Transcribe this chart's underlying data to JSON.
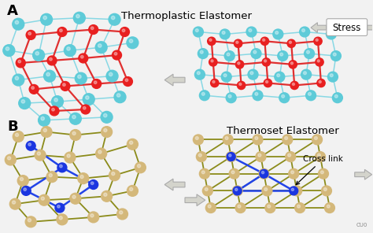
{
  "bg_color": "#f2f2f2",
  "title_thermo": "Thermoplastic Elastomer",
  "title_thermoset": "Thermoset Elastomer",
  "label_A": "A",
  "label_B": "B",
  "stress_label": "Stress",
  "crosslink_label": "Cross link",
  "cyan_color": "#5ecbd8",
  "red_color": "#e82020",
  "tan_color": "#d4b87a",
  "blue_color": "#1a35e0",
  "edge_cyan": "#88d8e4",
  "edge_olive": "#8b8b1a",
  "edge_blue": "#2244e8",
  "edge_red": "#e03030",
  "arrow_color": "#d4d4cc",
  "white": "#ffffff",
  "black": "#000000"
}
